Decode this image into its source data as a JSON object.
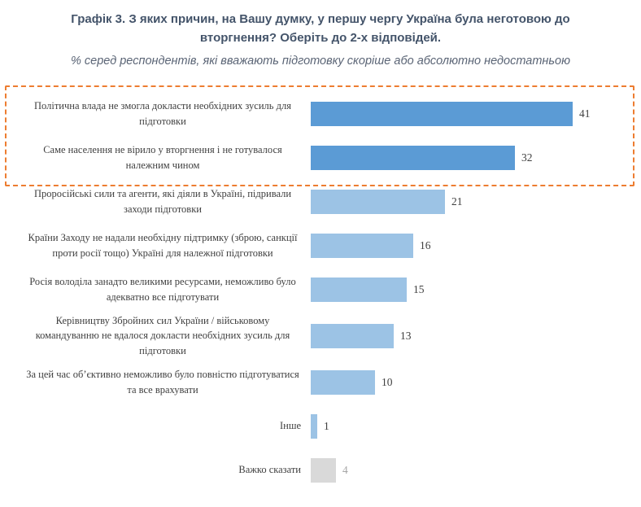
{
  "title": "Графік 3. З яких причин, на Вашу думку, у першу чергу Україна була неготовою до вторгнення? Оберіть до 2-х відповідей.",
  "subtitle": "% серед респондентів, які вважають підготовку скоріше або абсолютно недостатньою",
  "colors": {
    "title_text": "#44546A",
    "subtitle_text": "#5a6475",
    "dark_bar": "#5B9BD5",
    "light_bar": "#9CC3E5",
    "gray_bar": "#D9D9D9",
    "value_text": "#404040",
    "muted_value_text": "#A6A6A6",
    "highlight_border": "#ED7D31"
  },
  "chart_data": {
    "type": "bar",
    "orientation": "horizontal",
    "title": "Графік 3. З яких причин, на Вашу думку, у першу чергу Україна була неготовою до вторгнення? Оберіть до 2-х відповідей.",
    "subtitle": "% серед респондентів, які вважають підготовку скоріше або абсолютно недостатньою",
    "xlabel": "",
    "ylabel": "",
    "xlim": [
      0,
      45
    ],
    "grid": false,
    "legend": "none",
    "categories": [
      "Політична влада не змогла докласти необхідних зусиль для підготовки",
      "Саме населення не вірило у вторгнення і не готувалося належним чином",
      "Проросійські сили та агенти, які діяли в Україні, підривали заходи підготовки",
      "Країни Заходу не надали необхідну підтримку (зброю, санкції проти росії тощо) Україні для належної підготовки",
      "Росія володіла занадто великими ресурсами, неможливо було адекватно все підготувати",
      "Керівництву Збройних сил України / військовому командуванню не вдалося докласти необхідних зусиль для підготовки",
      "За цей час об’єктивно неможливо було повністю підготуватися та все врахувати",
      "Інше",
      "Важко сказати"
    ],
    "values": [
      41,
      32,
      21,
      16,
      15,
      13,
      10,
      1,
      4
    ],
    "bar_colors": [
      "#5B9BD5",
      "#5B9BD5",
      "#9CC3E5",
      "#9CC3E5",
      "#9CC3E5",
      "#9CC3E5",
      "#9CC3E5",
      "#9CC3E5",
      "#D9D9D9"
    ],
    "value_colors": [
      "#404040",
      "#404040",
      "#404040",
      "#404040",
      "#404040",
      "#404040",
      "#404040",
      "#404040",
      "#A6A6A6"
    ],
    "highlight": {
      "rows": [
        0,
        1
      ],
      "border_color": "#ED7D31",
      "border_style": "dashed",
      "meaning": "top-2 answers highlighted"
    }
  }
}
